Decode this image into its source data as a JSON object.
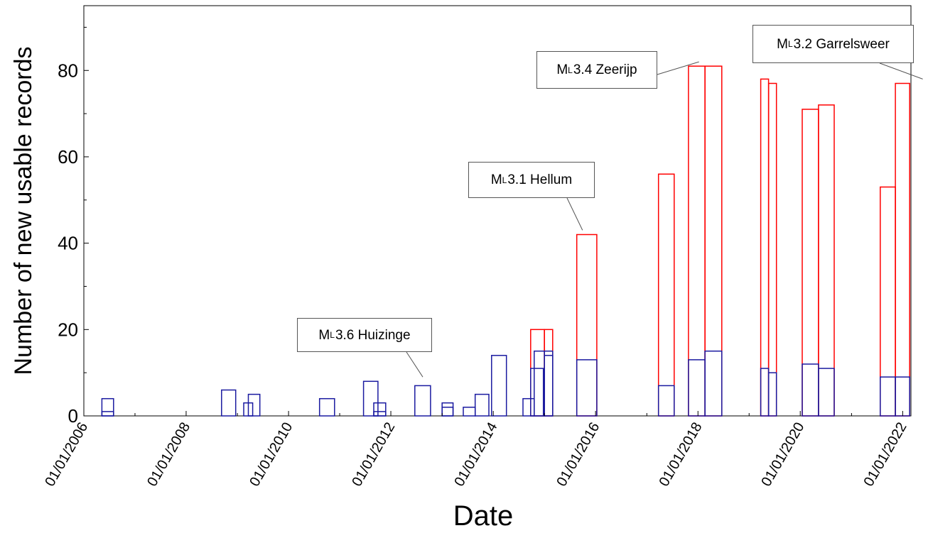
{
  "colors": {
    "red_series": "#ff0000",
    "blue_series": "#1a1aa0",
    "axis": "#000000",
    "annotation_border": "#555555",
    "annotation_leader": "#555555"
  },
  "chart_data": {
    "type": "bar",
    "xlabel": "Date",
    "ylabel": "Number of new usable records",
    "ylim": [
      0,
      95
    ],
    "xlim": [
      "2006-01-01",
      "2022-03-01"
    ],
    "yticks": [
      0,
      20,
      40,
      60,
      80
    ],
    "y_minor_step": 10,
    "xticks": [
      "01/01/2006",
      "01/01/2008",
      "01/01/2010",
      "01/01/2012",
      "01/01/2014",
      "01/01/2016",
      "01/01/2018",
      "01/01/2020",
      "01/01/2022"
    ],
    "x_minor_step_years": 1,
    "grid": false,
    "series": [
      {
        "color": "#ff0000",
        "bars": [
          {
            "start": "2014-09-25",
            "end": "2015-01-01",
            "value": 20
          },
          {
            "start": "2015-01-01",
            "end": "2015-03-01",
            "value": 20
          },
          {
            "start": "2015-08-20",
            "end": "2016-01-10",
            "value": 42
          },
          {
            "start": "2017-03-25",
            "end": "2017-07-15",
            "value": 56
          },
          {
            "start": "2017-10-25",
            "end": "2018-02-20",
            "value": 81
          },
          {
            "start": "2018-02-20",
            "end": "2018-06-20",
            "value": 81
          },
          {
            "start": "2019-03-25",
            "end": "2019-05-20",
            "value": 78
          },
          {
            "start": "2019-05-20",
            "end": "2019-07-15",
            "value": 77
          },
          {
            "start": "2020-01-15",
            "end": "2020-05-10",
            "value": 71
          },
          {
            "start": "2020-05-10",
            "end": "2020-08-30",
            "value": 72
          },
          {
            "start": "2021-07-25",
            "end": "2021-11-10",
            "value": 53
          },
          {
            "start": "2021-11-10",
            "end": "2022-02-20",
            "value": 77
          }
        ]
      },
      {
        "color": "#1a1aa0",
        "bars": [
          {
            "start": "2006-05-10",
            "end": "2006-08-01",
            "value": 4
          },
          {
            "start": "2006-05-10",
            "end": "2006-08-01",
            "value": 1
          },
          {
            "start": "2008-09-10",
            "end": "2008-12-20",
            "value": 6
          },
          {
            "start": "2009-02-15",
            "end": "2009-04-20",
            "value": 3
          },
          {
            "start": "2009-03-20",
            "end": "2009-06-10",
            "value": 5
          },
          {
            "start": "2010-08-10",
            "end": "2010-11-25",
            "value": 4
          },
          {
            "start": "2011-06-20",
            "end": "2011-10-01",
            "value": 8
          },
          {
            "start": "2011-09-01",
            "end": "2011-11-25",
            "value": 3
          },
          {
            "start": "2011-09-01",
            "end": "2011-11-25",
            "value": 1
          },
          {
            "start": "2012-06-20",
            "end": "2012-10-10",
            "value": 7
          },
          {
            "start": "2013-01-01",
            "end": "2013-03-20",
            "value": 3
          },
          {
            "start": "2013-01-01",
            "end": "2013-03-20",
            "value": 2
          },
          {
            "start": "2013-06-01",
            "end": "2013-08-25",
            "value": 2
          },
          {
            "start": "2013-08-25",
            "end": "2013-12-01",
            "value": 5
          },
          {
            "start": "2013-12-20",
            "end": "2014-04-05",
            "value": 14
          },
          {
            "start": "2014-08-01",
            "end": "2014-10-20",
            "value": 4
          },
          {
            "start": "2014-09-25",
            "end": "2014-12-25",
            "value": 11
          },
          {
            "start": "2014-10-20",
            "end": "2015-01-01",
            "value": 15
          },
          {
            "start": "2015-01-01",
            "end": "2015-03-01",
            "value": 15
          },
          {
            "start": "2015-01-01",
            "end": "2015-03-01",
            "value": 14
          },
          {
            "start": "2015-08-20",
            "end": "2016-01-10",
            "value": 13
          },
          {
            "start": "2017-03-25",
            "end": "2017-07-15",
            "value": 7
          },
          {
            "start": "2017-10-25",
            "end": "2018-02-20",
            "value": 13
          },
          {
            "start": "2018-02-20",
            "end": "2018-06-20",
            "value": 15
          },
          {
            "start": "2019-03-25",
            "end": "2019-05-20",
            "value": 11
          },
          {
            "start": "2019-05-20",
            "end": "2019-07-15",
            "value": 10
          },
          {
            "start": "2020-01-15",
            "end": "2020-05-10",
            "value": 12
          },
          {
            "start": "2020-05-10",
            "end": "2020-08-30",
            "value": 11
          },
          {
            "start": "2021-07-25",
            "end": "2021-11-10",
            "value": 9
          },
          {
            "start": "2021-11-10",
            "end": "2022-02-20",
            "value": 9
          }
        ]
      }
    ],
    "annotations": [
      {
        "prefix": "M",
        "sub": "L",
        "text": "3.6 Huizinge",
        "target_date": "2012-08-16",
        "target_value": 9
      },
      {
        "prefix": "M",
        "sub": "L",
        "text": "3.1 Hellum",
        "target_date": "2015-09-30",
        "target_value": 43
      },
      {
        "prefix": "M",
        "sub": "L",
        "text": "3.4 Zeerijp",
        "target_date": "2018-01-08",
        "target_value": 82
      },
      {
        "prefix": "M",
        "sub": "L",
        "text": "3.2 Garrelsweer",
        "target_date": "2022-05-24",
        "target_value": 78
      }
    ]
  }
}
